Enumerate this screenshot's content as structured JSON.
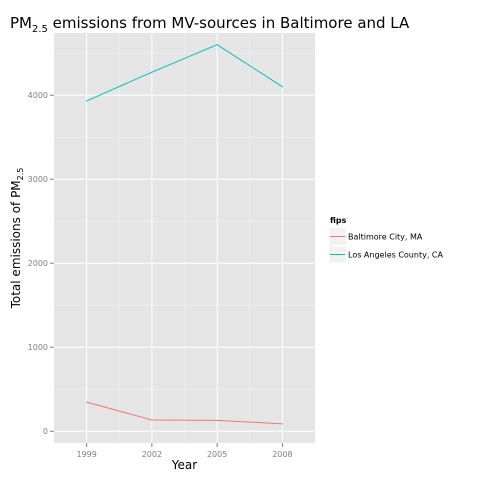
{
  "chart_data": {
    "type": "line",
    "title_main": "PM",
    "title_sub": "2.5",
    "title_rest": " emissions from MV-sources in Baltimore and LA",
    "xlabel": "Year",
    "ylabel_main": "Total emissions of PM",
    "ylabel_sub": "2.5",
    "x": [
      1999,
      2002,
      2005,
      2008
    ],
    "x_tick_labels": [
      "1999",
      "2002",
      "2005",
      "2008"
    ],
    "y_ticks": [
      0,
      1000,
      2000,
      3000,
      4000
    ],
    "y_tick_labels": [
      "0",
      "1000",
      "2000",
      "3000",
      "4000"
    ],
    "xlim": [
      1997.5,
      2009.5
    ],
    "ylim": [
      -140,
      4740
    ],
    "grid": true,
    "legend_position": "right",
    "legend_title": "fips",
    "series": [
      {
        "name": "Baltimore City, MA",
        "color": "#f8766d",
        "values": [
          347,
          134,
          130,
          88
        ]
      },
      {
        "name": "Los Angeles County, CA",
        "color": "#00bfc4",
        "values": [
          3931,
          4274,
          4601,
          4101
        ]
      }
    ]
  }
}
